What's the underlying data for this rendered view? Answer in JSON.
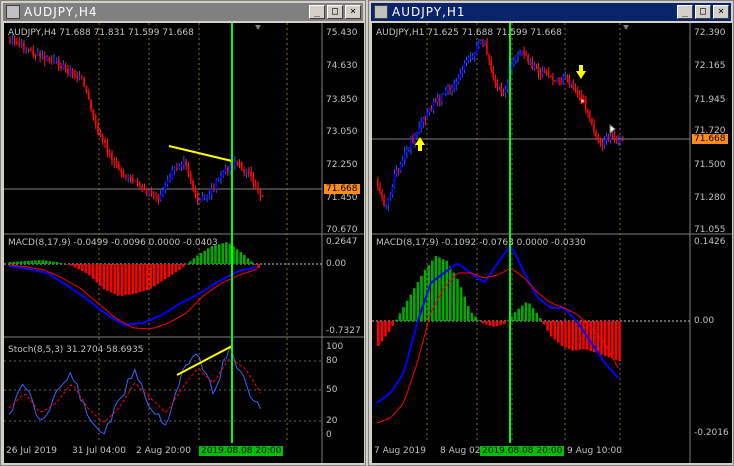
{
  "left": {
    "title": "AUDJPY,H4",
    "header": "AUDJPY,H4  71.688 71.831 71.599 71.668",
    "price_axis": [
      "75.430",
      "74.630",
      "73.850",
      "73.050",
      "72.250",
      "71.450",
      "70.670"
    ],
    "current_price": "71.668",
    "macd_label": "MACD(8,17,9) -0.0499 -0.0096 0.0000 -0.0403",
    "macd_axis": [
      "0.2647",
      "0.00",
      "-0.7327"
    ],
    "stoch_label": "Stoch(8,5,3) 31.2704 58.6935",
    "stoch_axis": [
      "100",
      "80",
      "50",
      "20",
      "0"
    ],
    "time_axis": [
      "26 Jul 2019",
      "31 Jul 04:00",
      "2 Aug 20:00"
    ],
    "date_marker": "2019.08.08 20:00"
  },
  "right": {
    "title": "AUDJPY,H1",
    "header": "AUDJPY,H1  71.625 71.688 71.599 71.668",
    "price_axis": [
      "72.390",
      "72.165",
      "71.945",
      "71.720",
      "71.500",
      "71.280",
      "71.055"
    ],
    "current_price": "71.668",
    "macd_label": "MACD(8,17,9) -0.1092 -0.0763 0.0000 -0.0330",
    "macd_axis": [
      "0.1426",
      "0.00",
      "-0.2016"
    ],
    "time_axis": [
      "7 Aug 2019",
      "8 Aug 02:",
      "9 Aug 10:00"
    ],
    "date_marker": "2019.08.08 20:00"
  },
  "window_buttons": {
    "minimize": "_",
    "maximize": "□",
    "close": "×"
  },
  "colors": {
    "bull": "#0000ff",
    "bear": "#ff0000",
    "vline": "#00ff00",
    "trend": "#ffff00",
    "macd_pos": "#00aa00",
    "macd_neg": "#ff0000",
    "price_tag": "#ff8c1a"
  }
}
